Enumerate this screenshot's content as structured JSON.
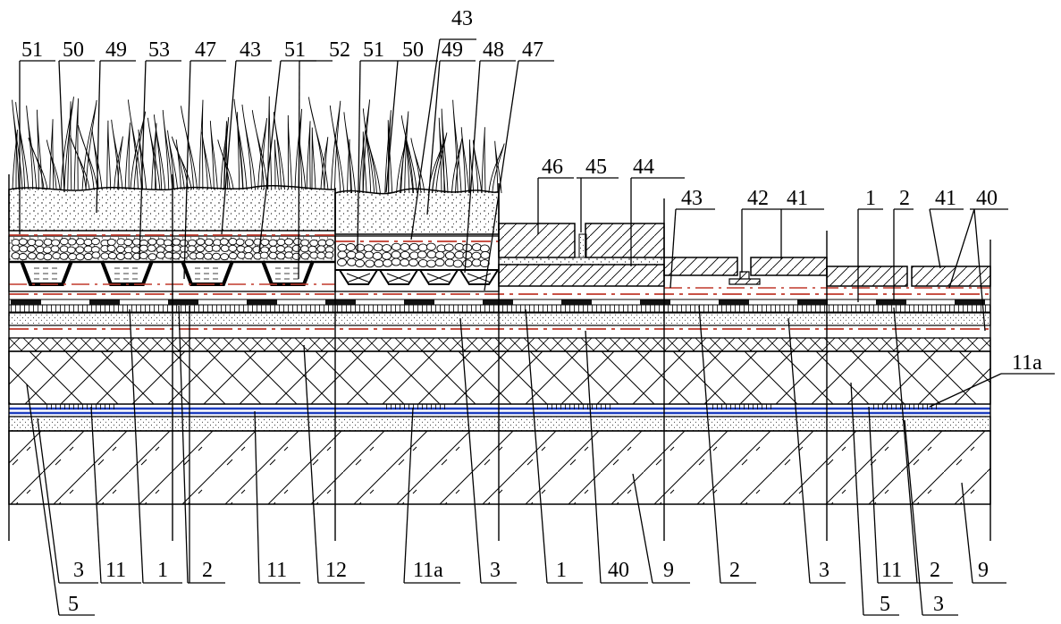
{
  "top_labels": [
    {
      "id": "t1",
      "text": "51"
    },
    {
      "id": "t2",
      "text": "50"
    },
    {
      "id": "t3",
      "text": "49"
    },
    {
      "id": "t4",
      "text": "53"
    },
    {
      "id": "t5",
      "text": "47"
    },
    {
      "id": "t6",
      "text": "43"
    },
    {
      "id": "t7",
      "text": "51"
    },
    {
      "id": "t8",
      "text": "52"
    },
    {
      "id": "t9",
      "text": "51"
    },
    {
      "id": "t10",
      "text": "50"
    },
    {
      "id": "t11",
      "text": "43"
    },
    {
      "id": "t12",
      "text": "49"
    },
    {
      "id": "t13",
      "text": "48"
    },
    {
      "id": "t14",
      "text": "47"
    },
    {
      "id": "t15",
      "text": "46"
    },
    {
      "id": "t16",
      "text": "45"
    },
    {
      "id": "t17",
      "text": "44"
    },
    {
      "id": "t18",
      "text": "43"
    },
    {
      "id": "t19",
      "text": "42"
    },
    {
      "id": "t20",
      "text": "41"
    },
    {
      "id": "t21",
      "text": "1"
    },
    {
      "id": "t22",
      "text": "2"
    },
    {
      "id": "t23",
      "text": "41"
    },
    {
      "id": "t24",
      "text": "40"
    },
    {
      "id": "t25",
      "text": "11a"
    }
  ],
  "bottom_labels": [
    {
      "id": "b1",
      "text": "3"
    },
    {
      "id": "b2",
      "text": "11"
    },
    {
      "id": "b3",
      "text": "1"
    },
    {
      "id": "b4",
      "text": "2"
    },
    {
      "id": "b5",
      "text": "11"
    },
    {
      "id": "b6",
      "text": "12"
    },
    {
      "id": "b7",
      "text": "11a"
    },
    {
      "id": "b8",
      "text": "3"
    },
    {
      "id": "b9",
      "text": "1"
    },
    {
      "id": "b10",
      "text": "40"
    },
    {
      "id": "b11",
      "text": "9"
    },
    {
      "id": "b12",
      "text": "2"
    },
    {
      "id": "b13",
      "text": "3"
    },
    {
      "id": "b14",
      "text": "11"
    },
    {
      "id": "b15",
      "text": "2"
    },
    {
      "id": "b16",
      "text": "9"
    },
    {
      "id": "b17",
      "text": "5"
    },
    {
      "id": "b18",
      "text": "5"
    },
    {
      "id": "b19",
      "text": "3"
    }
  ],
  "colors": {
    "line": "#000000",
    "membrane_red": "#c0392b",
    "pipe_blue": "#1f3fbf",
    "plate_black": "#111111"
  }
}
